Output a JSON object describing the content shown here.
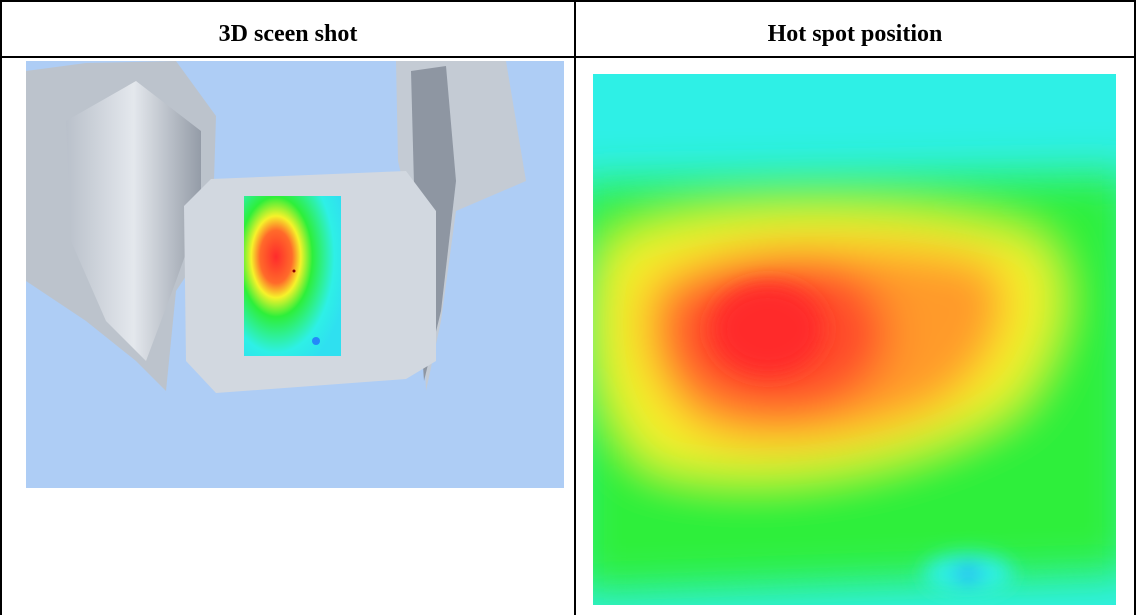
{
  "table": {
    "headers": [
      "3D sceen shot",
      "Hot spot position"
    ]
  },
  "images": {
    "left": {
      "background": "#aecdf5",
      "model_color": "#c8d0da",
      "icon": "3d-model-screenshot"
    },
    "right": {
      "icon": "hot-spot-heatmap"
    }
  },
  "colors": {
    "heat_red": "#ff2b2b",
    "heat_orange": "#ff9a2a",
    "heat_yellow": "#f6f22a",
    "heat_green": "#2eef3a",
    "heat_cyan": "#2ef0e6",
    "heat_blue": "#1f5fff"
  }
}
